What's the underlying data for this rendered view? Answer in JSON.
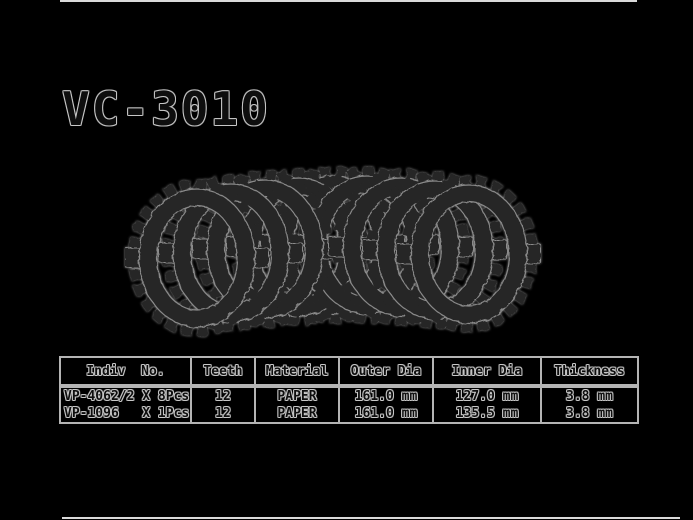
{
  "title": {
    "text": "VC-3010"
  },
  "illustration": {
    "label": "clutch friction plate set",
    "plate_count": 9
  },
  "spec_table": {
    "headers": [
      "Indiv  No.",
      "Teeth",
      "Material",
      "Outer Dia",
      "Inner Dia",
      "Thickness"
    ],
    "rows": [
      [
        "VP-4062/2 X 8Pcs",
        "12",
        "PAPER",
        "161.0 mm",
        "127.0 mm",
        "3.8 mm"
      ],
      [
        "VP-1096   X 1Pcs",
        "12",
        "PAPER",
        "161.0 mm",
        "135.5 mm",
        "3.8 mm"
      ]
    ]
  },
  "colors": {
    "background": "#000000",
    "ink": "#0e0e0e",
    "halo": "#c8c8c8",
    "halo2": "#8f8f8f",
    "frame_line": "#dadada",
    "table_border": "#b4b4b4",
    "plate_fill": "#282828",
    "plate_edge": "#8a8a8a"
  }
}
